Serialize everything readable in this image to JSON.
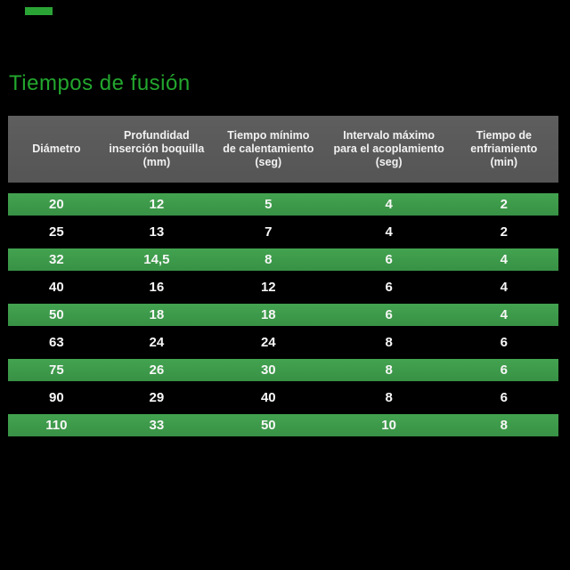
{
  "page": {
    "title": "Tiempos de fusión"
  },
  "colors": {
    "background": "#000000",
    "title_green": "#23a72e",
    "accent_green": "#2ba436",
    "row_highlight_green": "#3e9d4a",
    "header_gray": "#595959",
    "text_white": "#ffffff"
  },
  "table": {
    "headers": [
      {
        "lines": [
          "Diámetro",
          "",
          ""
        ]
      },
      {
        "lines": [
          "Profundidad",
          "inserción boquilla",
          "(mm)"
        ]
      },
      {
        "lines": [
          "Tiempo mínimo",
          "de calentamiento",
          "(seg)"
        ]
      },
      {
        "lines": [
          "Intervalo máximo",
          "para el acoplamiento",
          "(seg)"
        ]
      },
      {
        "lines": [
          "Tiempo de",
          "enfriamiento",
          "(min)"
        ]
      }
    ],
    "rows": [
      {
        "highlight": true,
        "cells": [
          "20",
          "12",
          "5",
          "4",
          "2"
        ]
      },
      {
        "highlight": false,
        "cells": [
          "25",
          "13",
          "7",
          "4",
          "2"
        ]
      },
      {
        "highlight": true,
        "cells": [
          "32",
          "14,5",
          "8",
          "6",
          "4"
        ]
      },
      {
        "highlight": false,
        "cells": [
          "40",
          "16",
          "12",
          "6",
          "4"
        ]
      },
      {
        "highlight": true,
        "cells": [
          "50",
          "18",
          "18",
          "6",
          "4"
        ]
      },
      {
        "highlight": false,
        "cells": [
          "63",
          "24",
          "24",
          "8",
          "6"
        ]
      },
      {
        "highlight": true,
        "cells": [
          "75",
          "26",
          "30",
          "8",
          "6"
        ]
      },
      {
        "highlight": false,
        "cells": [
          "90",
          "29",
          "40",
          "8",
          "6"
        ]
      },
      {
        "highlight": true,
        "cells": [
          "110",
          "33",
          "50",
          "10",
          "8"
        ]
      }
    ]
  }
}
